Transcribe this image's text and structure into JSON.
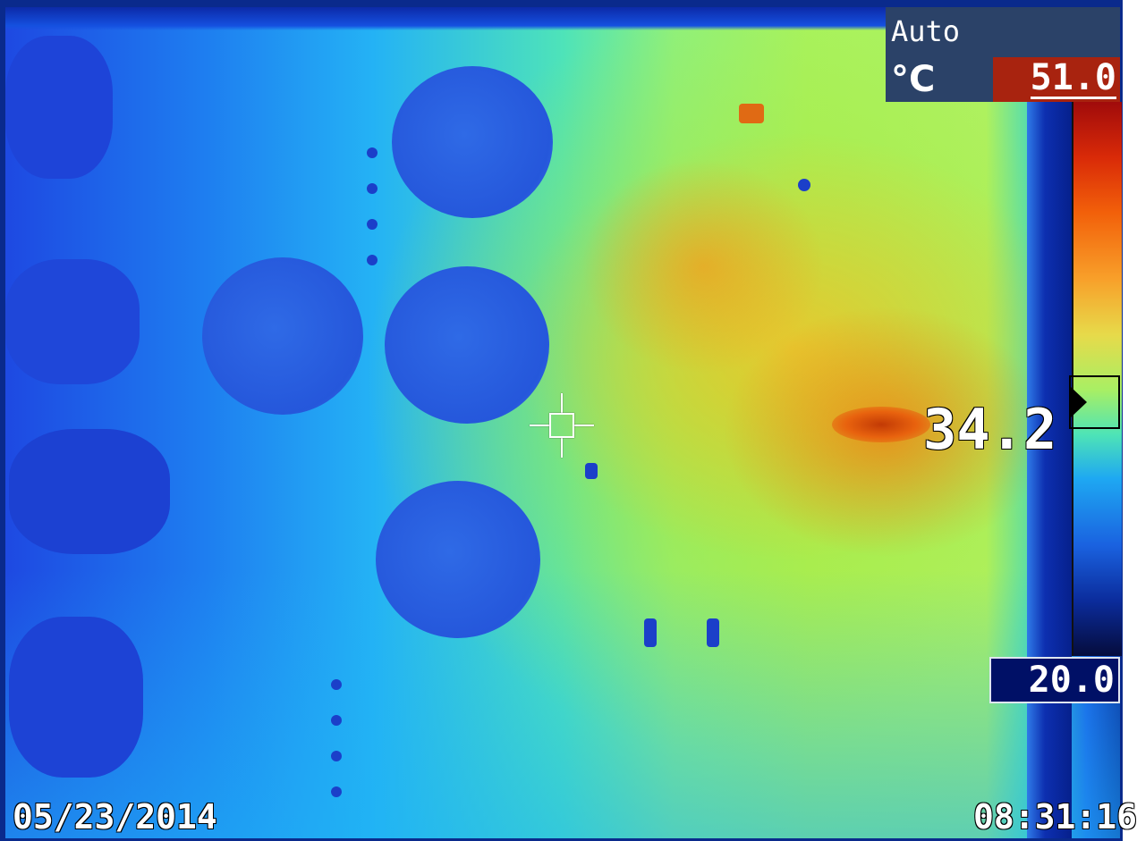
{
  "camera": {
    "range_mode": "Auto",
    "unit": "°C",
    "scale_max": "51.0",
    "scale_min": "20.0",
    "spot_temperature": "34.2",
    "date": "05/23/2014",
    "time": "08:31:16"
  },
  "palette": {
    "hot": "#a00b0b",
    "warm": "#f8a02a",
    "mid": "#a8ef64",
    "cool": "#1ea8f2",
    "cold": "#050c3c"
  },
  "icons": {
    "crosshair": "spot-crosshair-icon",
    "marker": "colorbar-pointer-icon"
  }
}
